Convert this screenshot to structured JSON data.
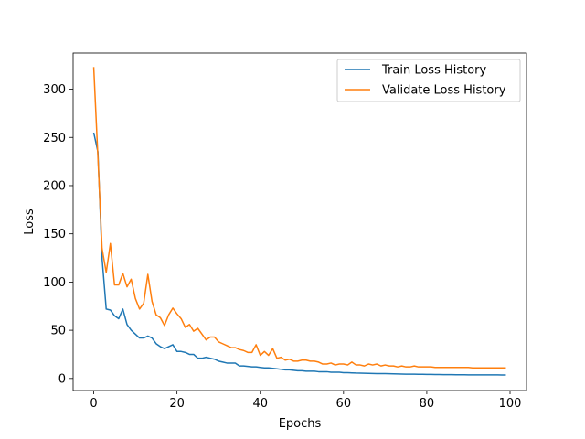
{
  "chart_data": {
    "type": "line",
    "xlabel": "Epochs",
    "ylabel": "Loss",
    "xlim": [
      -4.95,
      103.95
    ],
    "ylim": [
      -12.5,
      337.5
    ],
    "xticks": [
      0,
      20,
      40,
      60,
      80,
      100
    ],
    "yticks": [
      0,
      50,
      100,
      150,
      200,
      250,
      300
    ],
    "grid": false,
    "legend": {
      "placement": "top-right"
    },
    "x": [
      0,
      1,
      2,
      3,
      4,
      5,
      6,
      7,
      8,
      9,
      10,
      11,
      12,
      13,
      14,
      15,
      16,
      17,
      18,
      19,
      20,
      21,
      22,
      23,
      24,
      25,
      26,
      27,
      28,
      29,
      30,
      31,
      32,
      33,
      34,
      35,
      36,
      37,
      38,
      39,
      40,
      41,
      42,
      43,
      44,
      45,
      46,
      47,
      48,
      49,
      50,
      51,
      52,
      53,
      54,
      55,
      56,
      57,
      58,
      59,
      60,
      61,
      62,
      63,
      64,
      65,
      66,
      67,
      68,
      69,
      70,
      71,
      72,
      73,
      74,
      75,
      76,
      77,
      78,
      79,
      80,
      81,
      82,
      83,
      84,
      85,
      86,
      87,
      88,
      89,
      90,
      91,
      92,
      93,
      94,
      95,
      96,
      97,
      98,
      99
    ],
    "series": [
      {
        "name": "Train Loss History",
        "color": "#1f77b4",
        "values": [
          255,
          235,
          125,
          72,
          71,
          65,
          62,
          72,
          56,
          50,
          46,
          42,
          42,
          44,
          42,
          36,
          33,
          31,
          33,
          35,
          28,
          28,
          27,
          25,
          25,
          21,
          21,
          22,
          21,
          20,
          18,
          17,
          16,
          16,
          16,
          13,
          13,
          12.5,
          12,
          12,
          11.5,
          11,
          11,
          10.5,
          10,
          9.5,
          9,
          9,
          8.5,
          8,
          8,
          7.5,
          7.5,
          7.5,
          7,
          7,
          7,
          6.5,
          6.5,
          6.5,
          6,
          6,
          5.8,
          5.6,
          5.5,
          5.4,
          5.3,
          5.2,
          5.1,
          5,
          5,
          4.9,
          4.8,
          4.7,
          4.6,
          4.5,
          4.5,
          4.4,
          4.3,
          4.3,
          4.2,
          4.2,
          4.1,
          4.1,
          4,
          4,
          4,
          3.9,
          3.9,
          3.9,
          3.8,
          3.8,
          3.8,
          3.8,
          3.7,
          3.7,
          3.7,
          3.7,
          3.6,
          3.6
        ]
      },
      {
        "name": "Validate Loss History",
        "color": "#ff7f0e",
        "values": [
          323,
          230,
          135,
          110,
          140,
          97,
          97,
          109,
          95,
          103,
          83,
          72,
          78,
          108,
          80,
          66,
          63,
          55,
          66,
          73,
          67,
          62,
          53,
          56,
          49,
          52,
          46,
          40,
          43,
          43,
          38,
          36,
          34,
          32,
          32,
          30,
          29,
          27,
          27,
          35,
          24,
          28,
          24,
          31,
          21,
          22,
          19,
          20,
          18,
          18,
          19,
          19,
          18,
          18,
          17,
          15,
          15,
          16,
          14,
          15,
          15,
          14,
          17,
          14,
          14,
          13,
          15,
          14,
          15,
          13,
          14,
          13,
          13,
          12,
          13,
          12,
          12,
          13,
          12,
          12,
          12,
          12,
          11.5,
          11.5,
          11.5,
          11.5,
          11.5,
          11.5,
          11.5,
          11.5,
          11.5,
          11,
          11,
          11,
          11,
          11,
          11,
          11,
          11,
          11
        ]
      }
    ]
  }
}
